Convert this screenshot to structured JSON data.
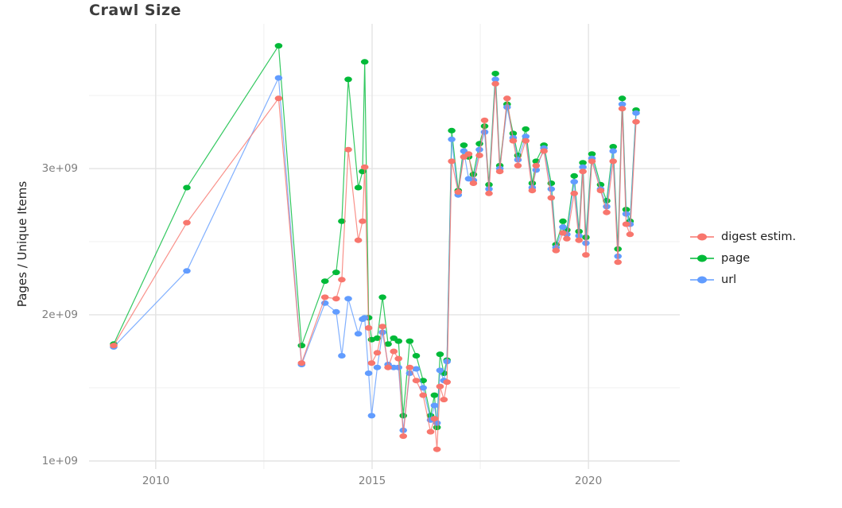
{
  "title": "Crawl Size",
  "axes": {
    "y": {
      "label": "Pages / Unique Items",
      "ticks": [
        "1e+09",
        "2e+09",
        "3e+09"
      ]
    },
    "x": {
      "ticks": [
        "2010",
        "2015",
        "2020"
      ]
    }
  },
  "legend": {
    "items": [
      {
        "label": "digest estim.",
        "color": "#F8766D"
      },
      {
        "label": "page",
        "color": "#00BA38"
      },
      {
        "label": "url",
        "color": "#619CFF"
      }
    ]
  },
  "chart_data": {
    "type": "line",
    "title": "Crawl Size",
    "xlabel": "",
    "ylabel": "Pages / Unique Items",
    "legend_position": "right",
    "grid": true,
    "xlim": [
      2008.46,
      2022.11
    ],
    "ylim": [
      945000000.0,
      3990000000.0
    ],
    "x_major_ticks": [
      2010,
      2015,
      2020
    ],
    "x_minor_gridlines": [
      2012.5,
      2017.5
    ],
    "y_major_ticks": [
      1000000000.0,
      2000000000.0,
      3000000000.0
    ],
    "y_minor_gridlines": [
      1500000000.0,
      2500000000.0,
      3500000000.0
    ],
    "x": [
      2009.03,
      2010.72,
      2012.84,
      2013.37,
      2013.91,
      2014.17,
      2014.3,
      2014.45,
      2014.68,
      2014.78,
      2014.83,
      2014.92,
      2014.99,
      2015.12,
      2015.24,
      2015.37,
      2015.5,
      2015.61,
      2015.72,
      2015.87,
      2016.02,
      2016.18,
      2016.35,
      2016.44,
      2016.5,
      2016.57,
      2016.66,
      2016.73,
      2016.84,
      2016.99,
      2017.12,
      2017.23,
      2017.34,
      2017.48,
      2017.6,
      2017.7,
      2017.85,
      2017.95,
      2018.12,
      2018.26,
      2018.37,
      2018.55,
      2018.7,
      2018.79,
      2018.97,
      2019.14,
      2019.25,
      2019.41,
      2019.5,
      2019.67,
      2019.78,
      2019.87,
      2019.94,
      2020.08,
      2020.28,
      2020.42,
      2020.57,
      2020.68,
      2020.78,
      2020.87,
      2020.96,
      2021.1
    ],
    "series": [
      {
        "name": "digest estim.",
        "color": "#F8766D",
        "values": [
          1790000000.0,
          2630000000.0,
          3480000000.0,
          1670000000.0,
          2120000000.0,
          2110000000.0,
          2240000000.0,
          3130000000.0,
          2510000000.0,
          2640000000.0,
          3010000000.0,
          1910000000.0,
          1670000000.0,
          1740000000.0,
          1920000000.0,
          1640000000.0,
          1750000000.0,
          1700000000.0,
          1170000000.0,
          1640000000.0,
          1550000000.0,
          1450000000.0,
          1200000000.0,
          1290000000.0,
          1080000000.0,
          1510000000.0,
          1420000000.0,
          1540000000.0,
          3050000000.0,
          2840000000.0,
          3080000000.0,
          3100000000.0,
          2900000000.0,
          3090000000.0,
          3330000000.0,
          2830000000.0,
          3580000000.0,
          2980000000.0,
          3480000000.0,
          3190000000.0,
          3020000000.0,
          3190000000.0,
          2850000000.0,
          3020000000.0,
          3120000000.0,
          2800000000.0,
          2440000000.0,
          2560000000.0,
          2520000000.0,
          2830000000.0,
          2510000000.0,
          2980000000.0,
          2410000000.0,
          3050000000.0,
          2850000000.0,
          2700000000.0,
          3050000000.0,
          2360000000.0,
          3410000000.0,
          2620000000.0,
          2550000000.0,
          3320000000.0
        ]
      },
      {
        "name": "page",
        "color": "#00BA38",
        "values": [
          1800000000.0,
          2870000000.0,
          3840000000.0,
          1790000000.0,
          2230000000.0,
          2290000000.0,
          2640000000.0,
          3610000000.0,
          2870000000.0,
          2980000000.0,
          3730000000.0,
          1980000000.0,
          1830000000.0,
          1840000000.0,
          2120000000.0,
          1800000000.0,
          1840000000.0,
          1820000000.0,
          1310000000.0,
          1820000000.0,
          1720000000.0,
          1550000000.0,
          1310000000.0,
          1450000000.0,
          1230000000.0,
          1730000000.0,
          1600000000.0,
          1690000000.0,
          3260000000.0,
          2850000000.0,
          3160000000.0,
          3080000000.0,
          2960000000.0,
          3170000000.0,
          3290000000.0,
          2890000000.0,
          3650000000.0,
          3020000000.0,
          3440000000.0,
          3240000000.0,
          3090000000.0,
          3270000000.0,
          2900000000.0,
          3050000000.0,
          3160000000.0,
          2900000000.0,
          2480000000.0,
          2640000000.0,
          2580000000.0,
          2950000000.0,
          2570000000.0,
          3040000000.0,
          2530000000.0,
          3100000000.0,
          2890000000.0,
          2780000000.0,
          3150000000.0,
          2450000000.0,
          3480000000.0,
          2720000000.0,
          2640000000.0,
          3400000000.0
        ]
      },
      {
        "name": "url",
        "color": "#619CFF",
        "values": [
          1780000000.0,
          2300000000.0,
          3620000000.0,
          1660000000.0,
          2080000000.0,
          2020000000.0,
          1720000000.0,
          2110000000.0,
          1870000000.0,
          1970000000.0,
          1980000000.0,
          1600000000.0,
          1310000000.0,
          1640000000.0,
          1880000000.0,
          1660000000.0,
          1640000000.0,
          1640000000.0,
          1210000000.0,
          1600000000.0,
          1630000000.0,
          1500000000.0,
          1280000000.0,
          1380000000.0,
          1260000000.0,
          1620000000.0,
          1550000000.0,
          1680000000.0,
          3200000000.0,
          2820000000.0,
          3120000000.0,
          2930000000.0,
          2920000000.0,
          3130000000.0,
          3250000000.0,
          2860000000.0,
          3610000000.0,
          3000000000.0,
          3420000000.0,
          3210000000.0,
          3060000000.0,
          3220000000.0,
          2870000000.0,
          2990000000.0,
          3140000000.0,
          2860000000.0,
          2460000000.0,
          2600000000.0,
          2550000000.0,
          2910000000.0,
          2540000000.0,
          3010000000.0,
          2490000000.0,
          3070000000.0,
          2860000000.0,
          2740000000.0,
          3120000000.0,
          2400000000.0,
          3440000000.0,
          2690000000.0,
          2620000000.0,
          3380000000.0
        ]
      }
    ]
  }
}
